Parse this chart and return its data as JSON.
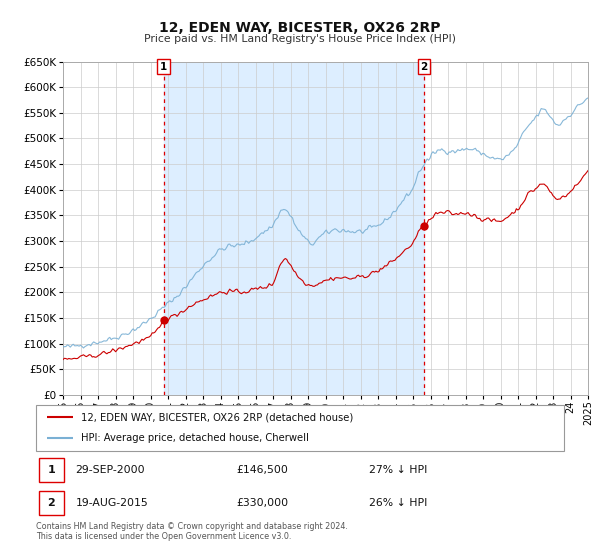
{
  "title": "12, EDEN WAY, BICESTER, OX26 2RP",
  "subtitle": "Price paid vs. HM Land Registry's House Price Index (HPI)",
  "legend_line1": "12, EDEN WAY, BICESTER, OX26 2RP (detached house)",
  "legend_line2": "HPI: Average price, detached house, Cherwell",
  "footer1": "Contains HM Land Registry data © Crown copyright and database right 2024.",
  "footer2": "This data is licensed under the Open Government Licence v3.0.",
  "xmin": 1995.0,
  "xmax": 2025.0,
  "ymin": 0,
  "ymax": 650000,
  "yticks": [
    0,
    50000,
    100000,
    150000,
    200000,
    250000,
    300000,
    350000,
    400000,
    450000,
    500000,
    550000,
    600000,
    650000
  ],
  "red_color": "#cc0000",
  "blue_color": "#7ab0d4",
  "bg_color": "#ddeeff",
  "plot_bg": "#ffffff",
  "grid_color": "#cccccc",
  "vline_color": "#dd0000",
  "marker1_x": 2000.75,
  "marker2_x": 2015.63,
  "marker1_y": 146500,
  "marker2_y": 330000,
  "hpi_anchors": [
    [
      1995.0,
      93000
    ],
    [
      1995.5,
      94000
    ],
    [
      1996.0,
      97000
    ],
    [
      1996.5,
      99000
    ],
    [
      1997.0,
      103000
    ],
    [
      1997.5,
      107000
    ],
    [
      1998.0,
      112000
    ],
    [
      1998.5,
      118000
    ],
    [
      1999.0,
      126000
    ],
    [
      1999.5,
      136000
    ],
    [
      2000.0,
      148000
    ],
    [
      2000.5,
      163000
    ],
    [
      2001.0,
      178000
    ],
    [
      2001.5,
      192000
    ],
    [
      2002.0,
      210000
    ],
    [
      2002.5,
      232000
    ],
    [
      2003.0,
      252000
    ],
    [
      2003.5,
      268000
    ],
    [
      2004.0,
      283000
    ],
    [
      2004.5,
      290000
    ],
    [
      2005.0,
      291000
    ],
    [
      2005.5,
      296000
    ],
    [
      2006.0,
      306000
    ],
    [
      2006.5,
      318000
    ],
    [
      2007.0,
      330000
    ],
    [
      2007.4,
      358000
    ],
    [
      2007.75,
      362000
    ],
    [
      2008.0,
      348000
    ],
    [
      2008.5,
      318000
    ],
    [
      2009.0,
      297000
    ],
    [
      2009.3,
      295000
    ],
    [
      2009.6,
      305000
    ],
    [
      2010.0,
      315000
    ],
    [
      2010.5,
      322000
    ],
    [
      2011.0,
      321000
    ],
    [
      2011.5,
      318000
    ],
    [
      2012.0,
      318000
    ],
    [
      2012.5,
      322000
    ],
    [
      2013.0,
      330000
    ],
    [
      2013.5,
      342000
    ],
    [
      2014.0,
      360000
    ],
    [
      2014.5,
      382000
    ],
    [
      2015.0,
      402000
    ],
    [
      2015.3,
      432000
    ],
    [
      2015.63,
      450000
    ],
    [
      2016.0,
      463000
    ],
    [
      2016.3,
      475000
    ],
    [
      2016.6,
      478000
    ],
    [
      2017.0,
      476000
    ],
    [
      2017.5,
      475000
    ],
    [
      2018.0,
      480000
    ],
    [
      2018.5,
      478000
    ],
    [
      2019.0,
      470000
    ],
    [
      2019.5,
      462000
    ],
    [
      2020.0,
      458000
    ],
    [
      2020.5,
      468000
    ],
    [
      2021.0,
      488000
    ],
    [
      2021.3,
      510000
    ],
    [
      2021.6,
      525000
    ],
    [
      2022.0,
      540000
    ],
    [
      2022.3,
      555000
    ],
    [
      2022.6,
      555000
    ],
    [
      2023.0,
      535000
    ],
    [
      2023.3,
      525000
    ],
    [
      2023.6,
      535000
    ],
    [
      2024.0,
      548000
    ],
    [
      2024.3,
      558000
    ],
    [
      2024.6,
      568000
    ],
    [
      2025.0,
      580000
    ]
  ],
  "pp_anchors": [
    [
      1995.0,
      68000
    ],
    [
      1995.5,
      70000
    ],
    [
      1996.0,
      73000
    ],
    [
      1996.5,
      75000
    ],
    [
      1997.0,
      78000
    ],
    [
      1997.5,
      82000
    ],
    [
      1998.0,
      87000
    ],
    [
      1998.5,
      93000
    ],
    [
      1999.0,
      99000
    ],
    [
      1999.5,
      106000
    ],
    [
      2000.0,
      112000
    ],
    [
      2000.5,
      130000
    ],
    [
      2000.75,
      146500
    ],
    [
      2001.0,
      148000
    ],
    [
      2001.5,
      157000
    ],
    [
      2002.0,
      167000
    ],
    [
      2002.5,
      178000
    ],
    [
      2003.0,
      186000
    ],
    [
      2003.5,
      193000
    ],
    [
      2004.0,
      200000
    ],
    [
      2004.5,
      202000
    ],
    [
      2005.0,
      200000
    ],
    [
      2005.5,
      202000
    ],
    [
      2006.0,
      206000
    ],
    [
      2006.5,
      210000
    ],
    [
      2007.0,
      215000
    ],
    [
      2007.4,
      255000
    ],
    [
      2007.75,
      268000
    ],
    [
      2008.0,
      252000
    ],
    [
      2008.5,
      228000
    ],
    [
      2009.0,
      215000
    ],
    [
      2009.3,
      213000
    ],
    [
      2009.6,
      218000
    ],
    [
      2010.0,
      223000
    ],
    [
      2010.5,
      228000
    ],
    [
      2011.0,
      228000
    ],
    [
      2011.5,
      227000
    ],
    [
      2012.0,
      230000
    ],
    [
      2012.5,
      235000
    ],
    [
      2013.0,
      242000
    ],
    [
      2013.5,
      252000
    ],
    [
      2014.0,
      265000
    ],
    [
      2014.5,
      280000
    ],
    [
      2015.0,
      296000
    ],
    [
      2015.3,
      316000
    ],
    [
      2015.63,
      330000
    ],
    [
      2016.0,
      342000
    ],
    [
      2016.3,
      352000
    ],
    [
      2016.6,
      355000
    ],
    [
      2017.0,
      355000
    ],
    [
      2017.5,
      352000
    ],
    [
      2018.0,
      356000
    ],
    [
      2018.5,
      350000
    ],
    [
      2019.0,
      342000
    ],
    [
      2019.5,
      340000
    ],
    [
      2020.0,
      338000
    ],
    [
      2020.5,
      350000
    ],
    [
      2021.0,
      362000
    ],
    [
      2021.3,
      378000
    ],
    [
      2021.6,
      392000
    ],
    [
      2022.0,
      402000
    ],
    [
      2022.3,
      412000
    ],
    [
      2022.6,
      408000
    ],
    [
      2023.0,
      388000
    ],
    [
      2023.3,
      380000
    ],
    [
      2023.6,
      388000
    ],
    [
      2024.0,
      396000
    ],
    [
      2024.3,
      408000
    ],
    [
      2024.6,
      418000
    ],
    [
      2025.0,
      438000
    ]
  ]
}
